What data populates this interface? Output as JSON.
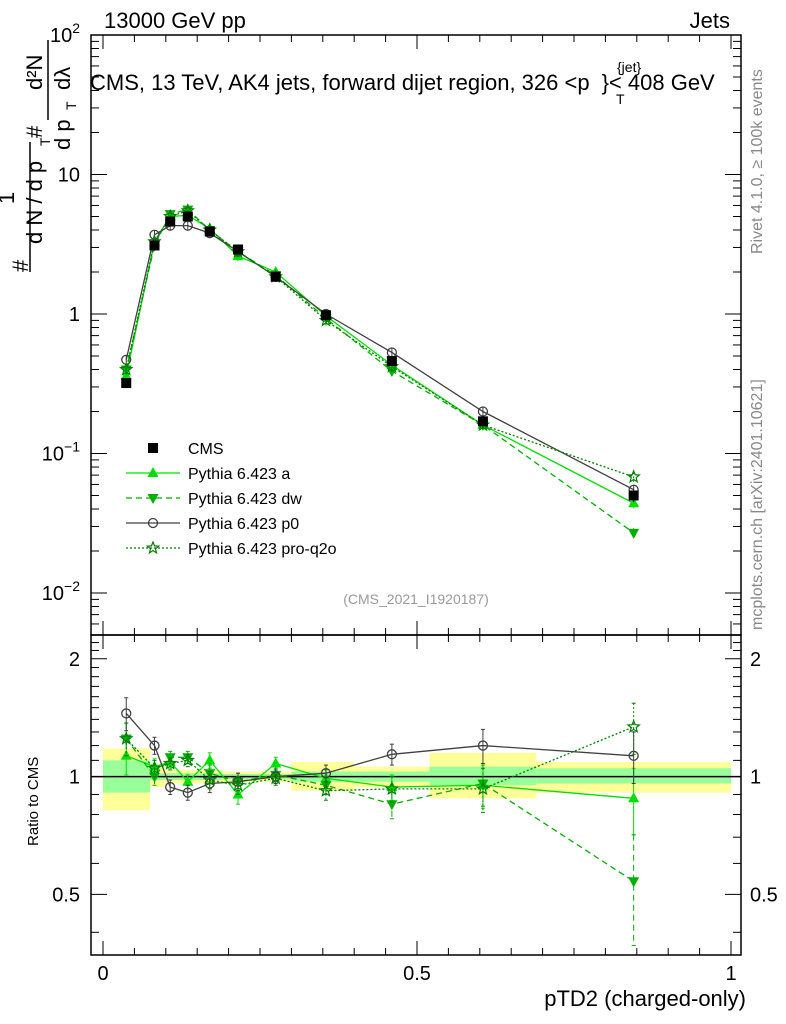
{
  "header": {
    "left": "13000 GeV pp",
    "right": "Jets",
    "title": "CMS, 13 TeV, AK4 jets, forward dijet region, 326 <p",
    "title_sup": "{jet}",
    "title_sub": "T",
    "title_end": "}< 408 GeV",
    "side_top": "Rivet 4.1.0, ≥ 100k events",
    "side_bottom": "mcplots.cern.ch [arXiv:2401.10621]",
    "analysis": "(CMS_2021_I1920187)"
  },
  "ylabel_main": {
    "hash1": "#",
    "one": "1",
    "dN": "d N / d p",
    "T1": "T",
    "hash2": "#",
    "dpT": "d p",
    "T2": "T",
    "d2N": "d²N",
    "dlambda": "dλ"
  },
  "colors": {
    "data": "#000000",
    "pythia_a": "#00e000",
    "pythia_dw": "#00b000",
    "pythia_p0": "#404040",
    "pythia_pro": "#008000",
    "band_outer": "#ffff99",
    "band_inner": "#99ff99"
  },
  "chart_data": {
    "type": "line",
    "xlabel": "pTD2 (charged-only)",
    "ylabel_ratio": "Ratio to CMS",
    "xlim": [
      0,
      1
    ],
    "main_ylim": [
      0.005,
      100
    ],
    "main_yscale": "log",
    "ratio_ylim": [
      0.35,
      2.3
    ],
    "ratio_yscale": "log",
    "x_ticks": [
      "0",
      "0.5",
      "1"
    ],
    "x_tick_values": [
      0,
      0.5,
      1
    ],
    "main_y_ticks": [
      {
        "value": 100,
        "base": "10",
        "exp": "2"
      },
      {
        "value": 10,
        "base": "10",
        "exp": ""
      },
      {
        "value": 1,
        "base": "1",
        "exp": ""
      },
      {
        "value": 0.1,
        "base": "10",
        "exp": "−1"
      },
      {
        "value": 0.01,
        "base": "10",
        "exp": "−2"
      }
    ],
    "ratio_y_ticks": [
      "2",
      "1",
      "0.5"
    ],
    "ratio_y_tick_values": [
      2,
      1,
      0.5
    ],
    "bins": [
      [
        0,
        0.075
      ],
      [
        0.075,
        0.1
      ],
      [
        0.1,
        0.125
      ],
      [
        0.125,
        0.15
      ],
      [
        0.15,
        0.19
      ],
      [
        0.19,
        0.25
      ],
      [
        0.25,
        0.3
      ],
      [
        0.3,
        0.4
      ],
      [
        0.4,
        0.52
      ],
      [
        0.52,
        0.69
      ],
      [
        0.69,
        1.0
      ]
    ],
    "x": [
      0.037,
      0.082,
      0.107,
      0.135,
      0.17,
      0.215,
      0.275,
      0.355,
      0.46,
      0.605,
      0.845
    ],
    "data": {
      "name": "CMS",
      "values": [
        0.32,
        3.1,
        4.6,
        5.0,
        3.9,
        2.9,
        1.85,
        0.98,
        0.46,
        0.17,
        0.05
      ],
      "rel_err": [
        0.08,
        0.06,
        0.05,
        0.05,
        0.05,
        0.05,
        0.05,
        0.05,
        0.06,
        0.08,
        0.1
      ],
      "band_outer": [
        [
          0.82,
          1.18
        ],
        [
          0.94,
          1.06
        ],
        [
          0.96,
          1.04
        ],
        [
          0.96,
          1.04
        ],
        [
          0.96,
          1.04
        ],
        [
          0.97,
          1.03
        ],
        [
          0.97,
          1.03
        ],
        [
          0.92,
          1.09
        ],
        [
          0.94,
          1.06
        ],
        [
          0.88,
          1.15
        ],
        [
          0.91,
          1.09
        ]
      ],
      "band_inner": [
        [
          0.91,
          1.1
        ],
        [
          0.98,
          1.02
        ],
        [
          0.98,
          1.02
        ],
        [
          0.98,
          1.02
        ],
        [
          0.98,
          1.02
        ],
        [
          0.985,
          1.015
        ],
        [
          0.985,
          1.015
        ],
        [
          0.97,
          1.03
        ],
        [
          0.97,
          1.03
        ],
        [
          0.95,
          1.06
        ],
        [
          0.96,
          1.05
        ]
      ]
    },
    "series": [
      {
        "name": "Pythia 6.423 a",
        "key": "pythia_a",
        "values": [
          0.36,
          3.3,
          5.0,
          5.1,
          4.1,
          2.6,
          2.0,
          0.97,
          0.43,
          0.16,
          0.044
        ],
        "ratio": [
          1.13,
          1.06,
          1.09,
          0.97,
          1.1,
          0.9,
          1.08,
          0.99,
          0.94,
          0.95,
          0.88
        ],
        "ratio_err": [
          0.12,
          0.05,
          0.04,
          0.04,
          0.05,
          0.05,
          0.04,
          0.05,
          0.07,
          0.12,
          0.17
        ],
        "marker": "triangle-up",
        "dash": ""
      },
      {
        "name": "Pythia 6.423 dw",
        "key": "pythia_dw",
        "values": [
          0.4,
          3.1,
          5.2,
          5.6,
          4.0,
          2.8,
          1.9,
          0.93,
          0.39,
          0.16,
          0.027
        ],
        "ratio": [
          1.25,
          1.0,
          1.12,
          1.12,
          1.02,
          0.97,
          1.01,
          0.95,
          0.85,
          0.96,
          0.54
        ],
        "ratio_err": [
          0.12,
          0.05,
          0.04,
          0.04,
          0.05,
          0.05,
          0.04,
          0.05,
          0.07,
          0.12,
          0.17
        ],
        "marker": "triangle-down",
        "dash": "6,4"
      },
      {
        "name": "Pythia 6.423 p0",
        "key": "pythia_p0",
        "values": [
          0.47,
          3.7,
          4.3,
          4.3,
          3.8,
          2.8,
          1.85,
          1.0,
          0.53,
          0.2,
          0.055
        ],
        "ratio": [
          1.45,
          1.2,
          0.94,
          0.91,
          0.96,
          0.97,
          1.0,
          1.02,
          1.14,
          1.2,
          1.13
        ],
        "ratio_err": [
          0.14,
          0.06,
          0.04,
          0.04,
          0.05,
          0.05,
          0.04,
          0.05,
          0.07,
          0.12,
          0.17
        ],
        "marker": "circle-open",
        "dash": ""
      },
      {
        "name": "Pythia 6.423 pro-q2o",
        "key": "pythia_pro",
        "values": [
          0.4,
          3.3,
          5.0,
          5.5,
          4.0,
          2.8,
          1.85,
          0.9,
          0.42,
          0.16,
          0.068
        ],
        "ratio": [
          1.25,
          1.05,
          1.08,
          1.1,
          0.98,
          0.95,
          0.99,
          0.92,
          0.93,
          0.93,
          1.34
        ],
        "ratio_err": [
          0.12,
          0.05,
          0.04,
          0.04,
          0.05,
          0.05,
          0.04,
          0.05,
          0.07,
          0.12,
          0.2
        ],
        "marker": "star-open",
        "dash": "2,2"
      }
    ]
  }
}
